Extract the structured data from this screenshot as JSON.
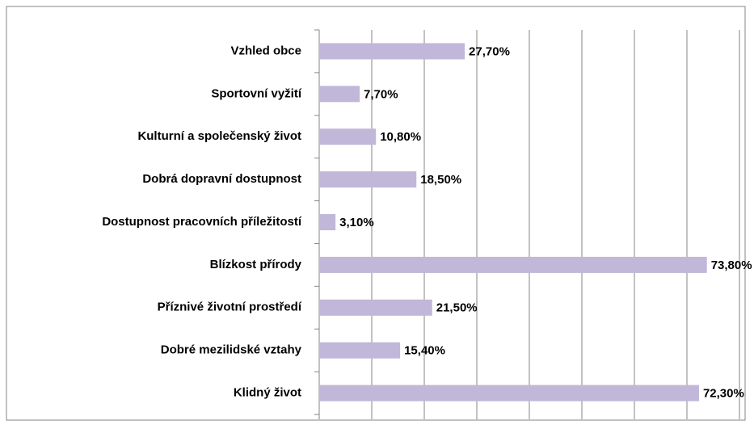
{
  "chart_data": {
    "type": "barh",
    "categories": [
      "Vzhled obce",
      "Sportovní vyžití",
      "Kulturní a společenský život",
      "Dobrá dopravní dostupnost",
      "Dostupnost pracovních příležitostí",
      "Blízkost přírody",
      "Příznivé životní prostředí",
      "Dobré mezilidské vztahy",
      "Klidný život"
    ],
    "values": [
      27.7,
      7.7,
      10.8,
      18.5,
      3.1,
      73.8,
      21.5,
      15.4,
      72.3
    ],
    "value_labels": [
      "27,70%",
      "7,70%",
      "10,80%",
      "18,50%",
      "3,10%",
      "73,80%",
      "21,50%",
      "15,40%",
      "72,30%"
    ],
    "color": "#c0b7d9",
    "xlim": [
      0,
      80
    ],
    "xticks": [
      0,
      10,
      20,
      30,
      40,
      50,
      60,
      70,
      80
    ],
    "grid": true
  }
}
